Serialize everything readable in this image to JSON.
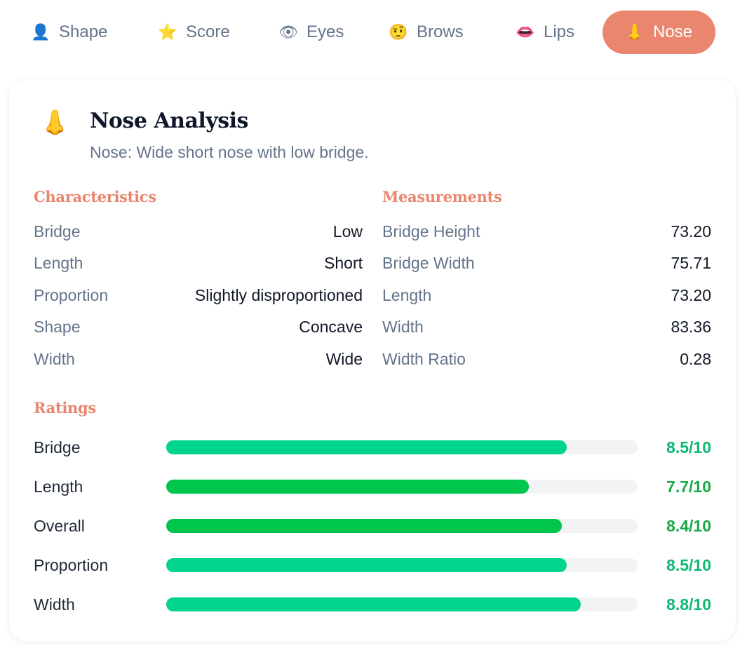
{
  "tabs": [
    {
      "icon": "person-icon",
      "glyph": "👤",
      "label": "Shape",
      "active": false
    },
    {
      "icon": "star-icon",
      "glyph": "⭐",
      "label": "Score",
      "active": false
    },
    {
      "icon": "eye-icon",
      "glyph": "👁",
      "label": "Eyes",
      "active": false
    },
    {
      "icon": "raised-brow-face-icon",
      "glyph": "🤨",
      "label": "Brows",
      "active": false
    },
    {
      "icon": "lips-icon",
      "glyph": "👄",
      "label": "Lips",
      "active": false
    },
    {
      "icon": "nose-icon",
      "glyph": "👃",
      "label": "Nose",
      "active": true
    }
  ],
  "card": {
    "icon": "nose-icon",
    "glyph": "👃",
    "title": "Nose Analysis",
    "subtitle": "Nose: Wide short nose with low bridge."
  },
  "characteristics": {
    "heading": "Characteristics",
    "rows": [
      {
        "key": "Bridge",
        "value": "Low"
      },
      {
        "key": "Length",
        "value": "Short"
      },
      {
        "key": "Proportion",
        "value": "Slightly disproportioned"
      },
      {
        "key": "Shape",
        "value": "Concave"
      },
      {
        "key": "Width",
        "value": "Wide"
      }
    ]
  },
  "measurements": {
    "heading": "Measurements",
    "rows": [
      {
        "key": "Bridge Height",
        "value": "73.20"
      },
      {
        "key": "Bridge Width",
        "value": "75.71"
      },
      {
        "key": "Length",
        "value": "73.20"
      },
      {
        "key": "Width",
        "value": "83.36"
      },
      {
        "key": "Width Ratio",
        "value": "0.28"
      }
    ]
  },
  "ratings": {
    "heading": "Ratings",
    "max": 10,
    "rows": [
      {
        "label": "Bridge",
        "score": 8.5,
        "text": "8.5/10",
        "color": "#00d48f",
        "text_color": "#0fb873"
      },
      {
        "label": "Length",
        "score": 7.7,
        "text": "7.7/10",
        "color": "#00c74c",
        "text_color": "#17a944"
      },
      {
        "label": "Overall",
        "score": 8.4,
        "text": "8.4/10",
        "color": "#00c74c",
        "text_color": "#17a944"
      },
      {
        "label": "Proportion",
        "score": 8.5,
        "text": "8.5/10",
        "color": "#00d48f",
        "text_color": "#0fb873"
      },
      {
        "label": "Width",
        "score": 8.8,
        "text": "8.8/10",
        "color": "#00d48f",
        "text_color": "#0fb873"
      }
    ]
  },
  "colors": {
    "accent": "#e9866d",
    "track": "#f1f3f5",
    "muted": "#64748b"
  }
}
